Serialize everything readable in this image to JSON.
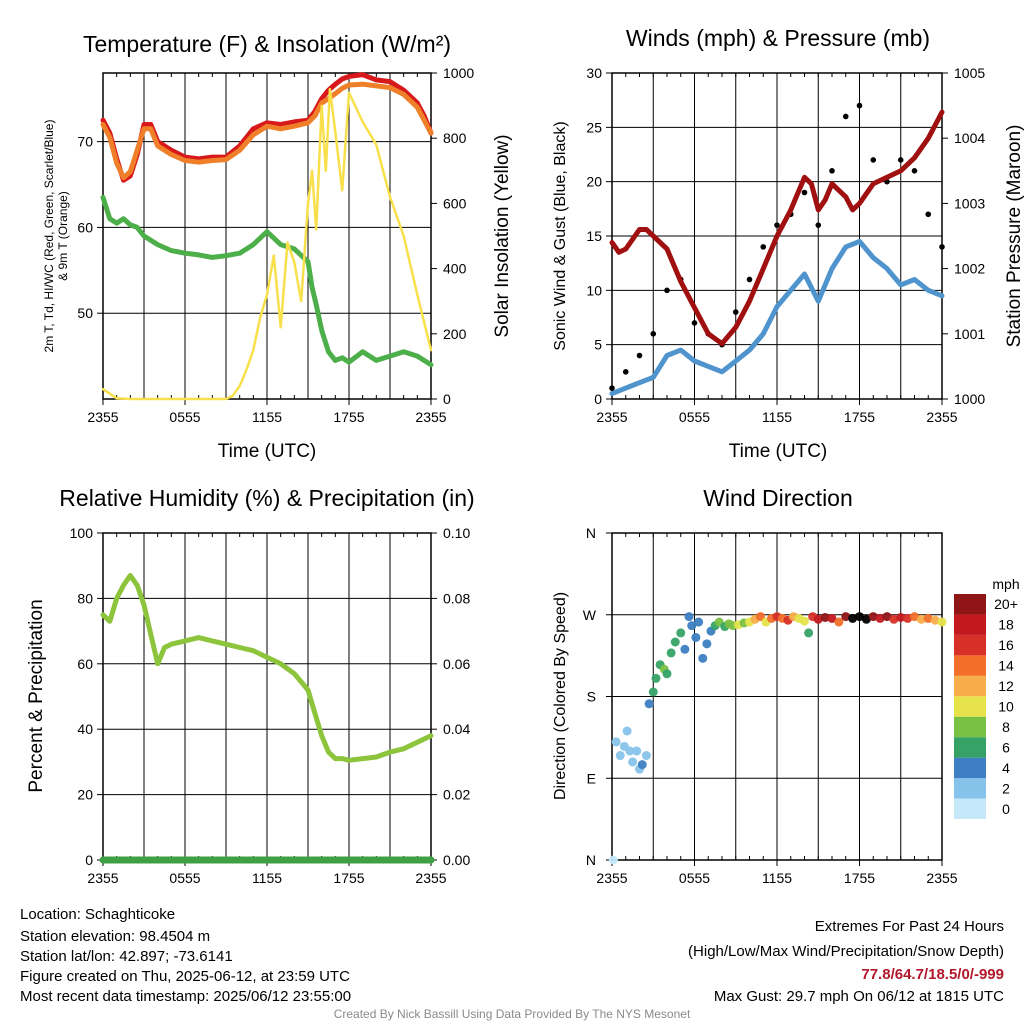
{
  "colors": {
    "temp": "#d7191c",
    "temp9m": "#f07f2a",
    "dew": "#4daf4a",
    "solar": "#f7e04b",
    "wind": "#4f94cd",
    "gust": "#000000",
    "pressure": "#a01010",
    "rh": "#8cc43c",
    "precip": "#3ea043"
  },
  "chart_data": [
    {
      "type": "line",
      "title": "Temperature (F) & Insolation (W/m²)",
      "xlabel": "Time (UTC)",
      "ylabel": "2m T, Td, HI/WC (Red, Green, Scarlet/Blue) & 9m T (Orange)",
      "ylabel_right": "Solar Insolation (Yellow)",
      "x_ticks": [
        "2355",
        "0555",
        "1155",
        "1755",
        "2355"
      ],
      "x_hours": [
        0,
        6,
        12,
        18,
        24
      ],
      "ylim": [
        40,
        78
      ],
      "y_ticks": [
        50,
        60,
        70
      ],
      "ylim_right": [
        0,
        1000
      ],
      "y_ticks_right": [
        0,
        200,
        400,
        600,
        800,
        1000
      ],
      "series": [
        {
          "name": "2m T",
          "color_key": "temp",
          "axis": "left",
          "x": [
            0,
            0.5,
            1,
            1.5,
            2,
            2.5,
            3,
            3.5,
            4,
            5,
            6,
            7,
            8,
            9,
            10,
            11,
            12,
            13,
            14,
            15,
            15.5,
            16,
            16.5,
            17,
            17.5,
            18,
            19,
            20,
            21,
            22,
            23,
            23.5,
            24
          ],
          "y": [
            72.5,
            71,
            68,
            65.5,
            66,
            68.5,
            72,
            72,
            70,
            69,
            68.2,
            68,
            68.2,
            68.2,
            69.5,
            71.5,
            72.2,
            72,
            72.3,
            72.5,
            73.5,
            75,
            76,
            76.7,
            77.3,
            77.6,
            77.8,
            77.2,
            77,
            76,
            74.5,
            73,
            71
          ]
        },
        {
          "name": "9m T",
          "color_key": "temp9m",
          "axis": "left",
          "x": [
            0,
            0.5,
            1,
            1.5,
            2,
            2.5,
            3,
            3.5,
            4,
            5,
            6,
            7,
            8,
            9,
            10,
            11,
            12,
            13,
            14,
            15,
            15.5,
            16,
            16.5,
            17,
            17.5,
            18,
            19,
            20,
            21,
            22,
            23,
            23.5,
            24
          ],
          "y": [
            72,
            70.5,
            67.5,
            65.8,
            66.5,
            69,
            71.5,
            71.5,
            69.5,
            68.5,
            67.8,
            67.6,
            67.8,
            67.9,
            69,
            70.8,
            71.8,
            71.5,
            71.8,
            72.2,
            73,
            74.5,
            75,
            75.6,
            76.2,
            76.6,
            76.7,
            76.5,
            76.3,
            75.5,
            74,
            72.5,
            71
          ]
        },
        {
          "name": "2m Td",
          "color_key": "dew",
          "axis": "left",
          "x": [
            0,
            0.5,
            1,
            1.5,
            2,
            2.5,
            3,
            4,
            5,
            6,
            7,
            8,
            9,
            10,
            11,
            12,
            13,
            14,
            15,
            15.3,
            15.6,
            16,
            16.5,
            17,
            17.5,
            18,
            19,
            20,
            21,
            22,
            23,
            24
          ],
          "y": [
            63.5,
            61,
            60.5,
            61,
            60.3,
            60,
            59,
            58,
            57.3,
            57,
            56.8,
            56.5,
            56.7,
            57,
            58,
            59.5,
            58,
            57.5,
            56,
            53,
            51,
            48,
            45.5,
            44.5,
            44.8,
            44.3,
            45.5,
            44.5,
            45,
            45.5,
            45,
            44
          ]
        },
        {
          "name": "Solar",
          "color_key": "solar",
          "axis": "right",
          "x": [
            0,
            1,
            2,
            3,
            4,
            5,
            6,
            7,
            8,
            9,
            9.5,
            10,
            10.5,
            11,
            11.5,
            12,
            12.5,
            13,
            13.5,
            14,
            14.5,
            15,
            15.3,
            15.6,
            16,
            16.3,
            16.6,
            17,
            17.5,
            18,
            19,
            20,
            21,
            22,
            23,
            24
          ],
          "y": [
            30,
            2,
            0,
            0,
            0,
            0,
            0,
            0,
            0,
            0,
            10,
            40,
            90,
            150,
            250,
            320,
            440,
            220,
            480,
            420,
            300,
            600,
            700,
            520,
            900,
            700,
            950,
            820,
            640,
            940,
            850,
            780,
            620,
            500,
            320,
            150
          ]
        }
      ]
    },
    {
      "type": "line",
      "title": "Winds (mph) & Pressure (mb)",
      "xlabel": "Time (UTC)",
      "ylabel": "Sonic Wind & Gust (Blue, Black)",
      "ylabel_right": "Station Pressure (Maroon)",
      "x_ticks": [
        "2355",
        "0555",
        "1155",
        "1755",
        "2355"
      ],
      "x_hours": [
        0,
        6,
        12,
        18,
        24
      ],
      "ylim": [
        0,
        30
      ],
      "y_ticks": [
        0,
        5,
        10,
        15,
        20,
        25,
        30
      ],
      "ylim_right": [
        1000,
        1005
      ],
      "y_ticks_right": [
        1000,
        1001,
        1002,
        1003,
        1004,
        1005
      ],
      "series": [
        {
          "name": "Wind",
          "color_key": "wind",
          "axis": "left",
          "x": [
            0,
            1,
            2,
            3,
            4,
            5,
            6,
            7,
            8,
            9,
            10,
            11,
            12,
            13,
            14,
            15,
            16,
            17,
            18,
            19,
            20,
            21,
            22,
            23,
            24
          ],
          "y": [
            0.5,
            1,
            1.5,
            2,
            4,
            4.5,
            3.5,
            3,
            2.5,
            3.5,
            4.5,
            6,
            8.5,
            10,
            11.5,
            9,
            12,
            14,
            14.5,
            13,
            12,
            10.5,
            11,
            10,
            9.5
          ]
        },
        {
          "name": "Gust",
          "color_key": "gust",
          "axis": "left",
          "x": [
            0,
            1,
            2,
            3,
            4,
            5,
            6,
            7,
            8,
            9,
            10,
            11,
            12,
            13,
            14,
            15,
            16,
            17,
            18,
            19,
            20,
            21,
            22,
            23,
            24
          ],
          "y": [
            1,
            2.5,
            4,
            6,
            10,
            11,
            7,
            6,
            5,
            8,
            11,
            14,
            16,
            17,
            19,
            16,
            21,
            26,
            27,
            22,
            20,
            22,
            21,
            17,
            14
          ]
        },
        {
          "name": "Pressure",
          "color_key": "pressure",
          "axis": "right",
          "x": [
            0,
            0.5,
            1,
            2,
            2.5,
            3,
            4,
            5,
            6,
            7,
            8,
            9,
            10,
            11,
            12,
            13,
            14,
            14.5,
            15,
            15.5,
            16,
            17,
            17.5,
            18,
            19,
            20,
            21,
            22,
            23,
            24
          ],
          "y": [
            1002.4,
            1002.25,
            1002.3,
            1002.6,
            1002.6,
            1002.5,
            1002.3,
            1001.8,
            1001.4,
            1001,
            1000.85,
            1001.1,
            1001.5,
            1002,
            1002.5,
            1002.9,
            1003.4,
            1003.3,
            1002.9,
            1003.05,
            1003.3,
            1003.1,
            1002.9,
            1003,
            1003.3,
            1003.4,
            1003.5,
            1003.7,
            1004,
            1004.4
          ]
        }
      ]
    },
    {
      "type": "line",
      "title": "Relative Humidity (%) & Precipitation (in)",
      "xlabel": "",
      "ylabel": "Percent & Precipitation",
      "x_ticks": [
        "2355",
        "0555",
        "1155",
        "1755",
        "2355"
      ],
      "x_hours": [
        0,
        6,
        12,
        18,
        24
      ],
      "ylim": [
        0,
        100
      ],
      "y_ticks": [
        0,
        20,
        40,
        60,
        80,
        100
      ],
      "ylim_right": [
        0,
        0.1
      ],
      "y_ticks_right": [
        "0.00",
        "0.02",
        "0.04",
        "0.06",
        "0.08",
        "0.10"
      ],
      "series": [
        {
          "name": "RH",
          "color_key": "rh",
          "axis": "left",
          "x": [
            0,
            0.5,
            1,
            1.5,
            2,
            2.5,
            3,
            3.5,
            4,
            4.5,
            5,
            6,
            7,
            8,
            9,
            10,
            11,
            12,
            13,
            14,
            15,
            15.5,
            16,
            16.5,
            17,
            17.5,
            18,
            19,
            20,
            21,
            22,
            23,
            24
          ],
          "y": [
            75,
            73,
            80,
            84,
            87,
            84,
            78,
            69,
            60,
            65,
            66,
            67,
            68,
            67,
            66,
            65,
            64,
            62,
            60,
            57,
            52,
            45,
            38,
            33,
            31,
            31,
            30.5,
            31,
            31.5,
            33,
            34,
            36,
            38
          ]
        },
        {
          "name": "Precip",
          "color_key": "precip",
          "axis": "right",
          "x": [
            0,
            24
          ],
          "y": [
            0,
            0
          ]
        }
      ]
    },
    {
      "type": "scatter",
      "title": "Wind Direction",
      "xlabel": "",
      "ylabel": "Direction (Colored By Speed)",
      "x_ticks": [
        "2355",
        "0555",
        "1155",
        "1755",
        "2355"
      ],
      "x_hours": [
        0,
        6,
        12,
        18,
        24
      ],
      "y_ticks": [
        "N",
        "E",
        "S",
        "W",
        "N"
      ],
      "ylim": [
        0,
        360
      ],
      "colorbar_title": "mph",
      "colorbar_labels": [
        "0",
        "2",
        "4",
        "6",
        "8",
        "10",
        "12",
        "14",
        "16",
        "18",
        "20+"
      ],
      "colorbar_colors": [
        "#c6e9fa",
        "#86c3ea",
        "#3d7fc2",
        "#36a266",
        "#79c143",
        "#e6e34a",
        "#f7ad49",
        "#f16f29",
        "#d73026",
        "#c2191f",
        "#8f1517"
      ],
      "points": [
        {
          "x": 0.1,
          "y": 0,
          "s": 0
        },
        {
          "x": 0.3,
          "y": 130,
          "s": 1
        },
        {
          "x": 0.6,
          "y": 115,
          "s": 1
        },
        {
          "x": 0.9,
          "y": 125,
          "s": 1
        },
        {
          "x": 1.1,
          "y": 142,
          "s": 1
        },
        {
          "x": 1.3,
          "y": 120,
          "s": 1
        },
        {
          "x": 1.5,
          "y": 108,
          "s": 1
        },
        {
          "x": 1.8,
          "y": 120,
          "s": 1
        },
        {
          "x": 2.0,
          "y": 100,
          "s": 1
        },
        {
          "x": 2.2,
          "y": 105,
          "s": 2
        },
        {
          "x": 2.5,
          "y": 115,
          "s": 1
        },
        {
          "x": 2.7,
          "y": 172,
          "s": 2
        },
        {
          "x": 3.0,
          "y": 185,
          "s": 3
        },
        {
          "x": 3.2,
          "y": 200,
          "s": 3
        },
        {
          "x": 3.5,
          "y": 215,
          "s": 3
        },
        {
          "x": 3.8,
          "y": 210,
          "s": 4
        },
        {
          "x": 4.0,
          "y": 205,
          "s": 3
        },
        {
          "x": 4.3,
          "y": 228,
          "s": 3
        },
        {
          "x": 4.6,
          "y": 240,
          "s": 3
        },
        {
          "x": 5.0,
          "y": 250,
          "s": 3
        },
        {
          "x": 5.3,
          "y": 232,
          "s": 2
        },
        {
          "x": 5.6,
          "y": 268,
          "s": 2
        },
        {
          "x": 5.8,
          "y": 258,
          "s": 2
        },
        {
          "x": 6.1,
          "y": 245,
          "s": 2
        },
        {
          "x": 6.3,
          "y": 262,
          "s": 2
        },
        {
          "x": 6.6,
          "y": 222,
          "s": 2
        },
        {
          "x": 6.9,
          "y": 238,
          "s": 2
        },
        {
          "x": 7.2,
          "y": 252,
          "s": 2
        },
        {
          "x": 7.5,
          "y": 258,
          "s": 3
        },
        {
          "x": 7.8,
          "y": 262,
          "s": 4
        },
        {
          "x": 8.2,
          "y": 257,
          "s": 3
        },
        {
          "x": 8.5,
          "y": 260,
          "s": 4
        },
        {
          "x": 8.8,
          "y": 258,
          "s": 4
        },
        {
          "x": 9.2,
          "y": 259,
          "s": 5
        },
        {
          "x": 9.6,
          "y": 261,
          "s": 4
        },
        {
          "x": 10.0,
          "y": 262,
          "s": 5
        },
        {
          "x": 10.4,
          "y": 265,
          "s": 6
        },
        {
          "x": 10.8,
          "y": 268,
          "s": 7
        },
        {
          "x": 11.2,
          "y": 262,
          "s": 5
        },
        {
          "x": 11.6,
          "y": 266,
          "s": 7
        },
        {
          "x": 12.0,
          "y": 268,
          "s": 8
        },
        {
          "x": 12.4,
          "y": 266,
          "s": 7
        },
        {
          "x": 12.8,
          "y": 264,
          "s": 8
        },
        {
          "x": 13.2,
          "y": 268,
          "s": 6
        },
        {
          "x": 13.6,
          "y": 266,
          "s": 5
        },
        {
          "x": 14.0,
          "y": 263,
          "s": 5
        },
        {
          "x": 14.3,
          "y": 250,
          "s": 3
        },
        {
          "x": 14.6,
          "y": 268,
          "s": 8
        },
        {
          "x": 15.0,
          "y": 265,
          "s": 9
        },
        {
          "x": 15.5,
          "y": 267,
          "s": 10
        },
        {
          "x": 16.0,
          "y": 266,
          "s": 9
        },
        {
          "x": 16.5,
          "y": 262,
          "s": 7
        },
        {
          "x": 17.0,
          "y": 268,
          "s": 10
        },
        {
          "x": 17.5,
          "y": 266,
          "s": 11
        },
        {
          "x": 18.0,
          "y": 268,
          "s": 12
        },
        {
          "x": 18.5,
          "y": 265,
          "s": 11
        },
        {
          "x": 19.0,
          "y": 268,
          "s": 10
        },
        {
          "x": 19.5,
          "y": 266,
          "s": 9
        },
        {
          "x": 20.0,
          "y": 268,
          "s": 10
        },
        {
          "x": 20.5,
          "y": 265,
          "s": 8
        },
        {
          "x": 21.0,
          "y": 267,
          "s": 9
        },
        {
          "x": 21.5,
          "y": 266,
          "s": 8
        },
        {
          "x": 22.0,
          "y": 268,
          "s": 7
        },
        {
          "x": 22.5,
          "y": 265,
          "s": 6
        },
        {
          "x": 23.0,
          "y": 266,
          "s": 7
        },
        {
          "x": 23.5,
          "y": 264,
          "s": 6
        },
        {
          "x": 24.0,
          "y": 262,
          "s": 5
        }
      ]
    }
  ],
  "footer": {
    "location": "Location: Schaghticoke",
    "elevation": "Station elevation: 98.4504 m",
    "latlon": "Station lat/lon: 42.897; -73.6141",
    "created": "Figure created on Thu, 2025-06-12, at 23:59 UTC",
    "recent": "Most recent data timestamp: 2025/06/12 23:55:00",
    "extremes_title": "Extremes For Past 24 Hours",
    "extremes_desc": "(High/Low/Max Wind/Precipitation/Snow Depth)",
    "extremes_values": "77.8/64.7/18.5/0/-999",
    "max_gust": "Max Gust: 29.7 mph On 06/12 at 1815 UTC",
    "credit": "Created By Nick Bassill Using Data Provided By The NYS Mesonet"
  }
}
